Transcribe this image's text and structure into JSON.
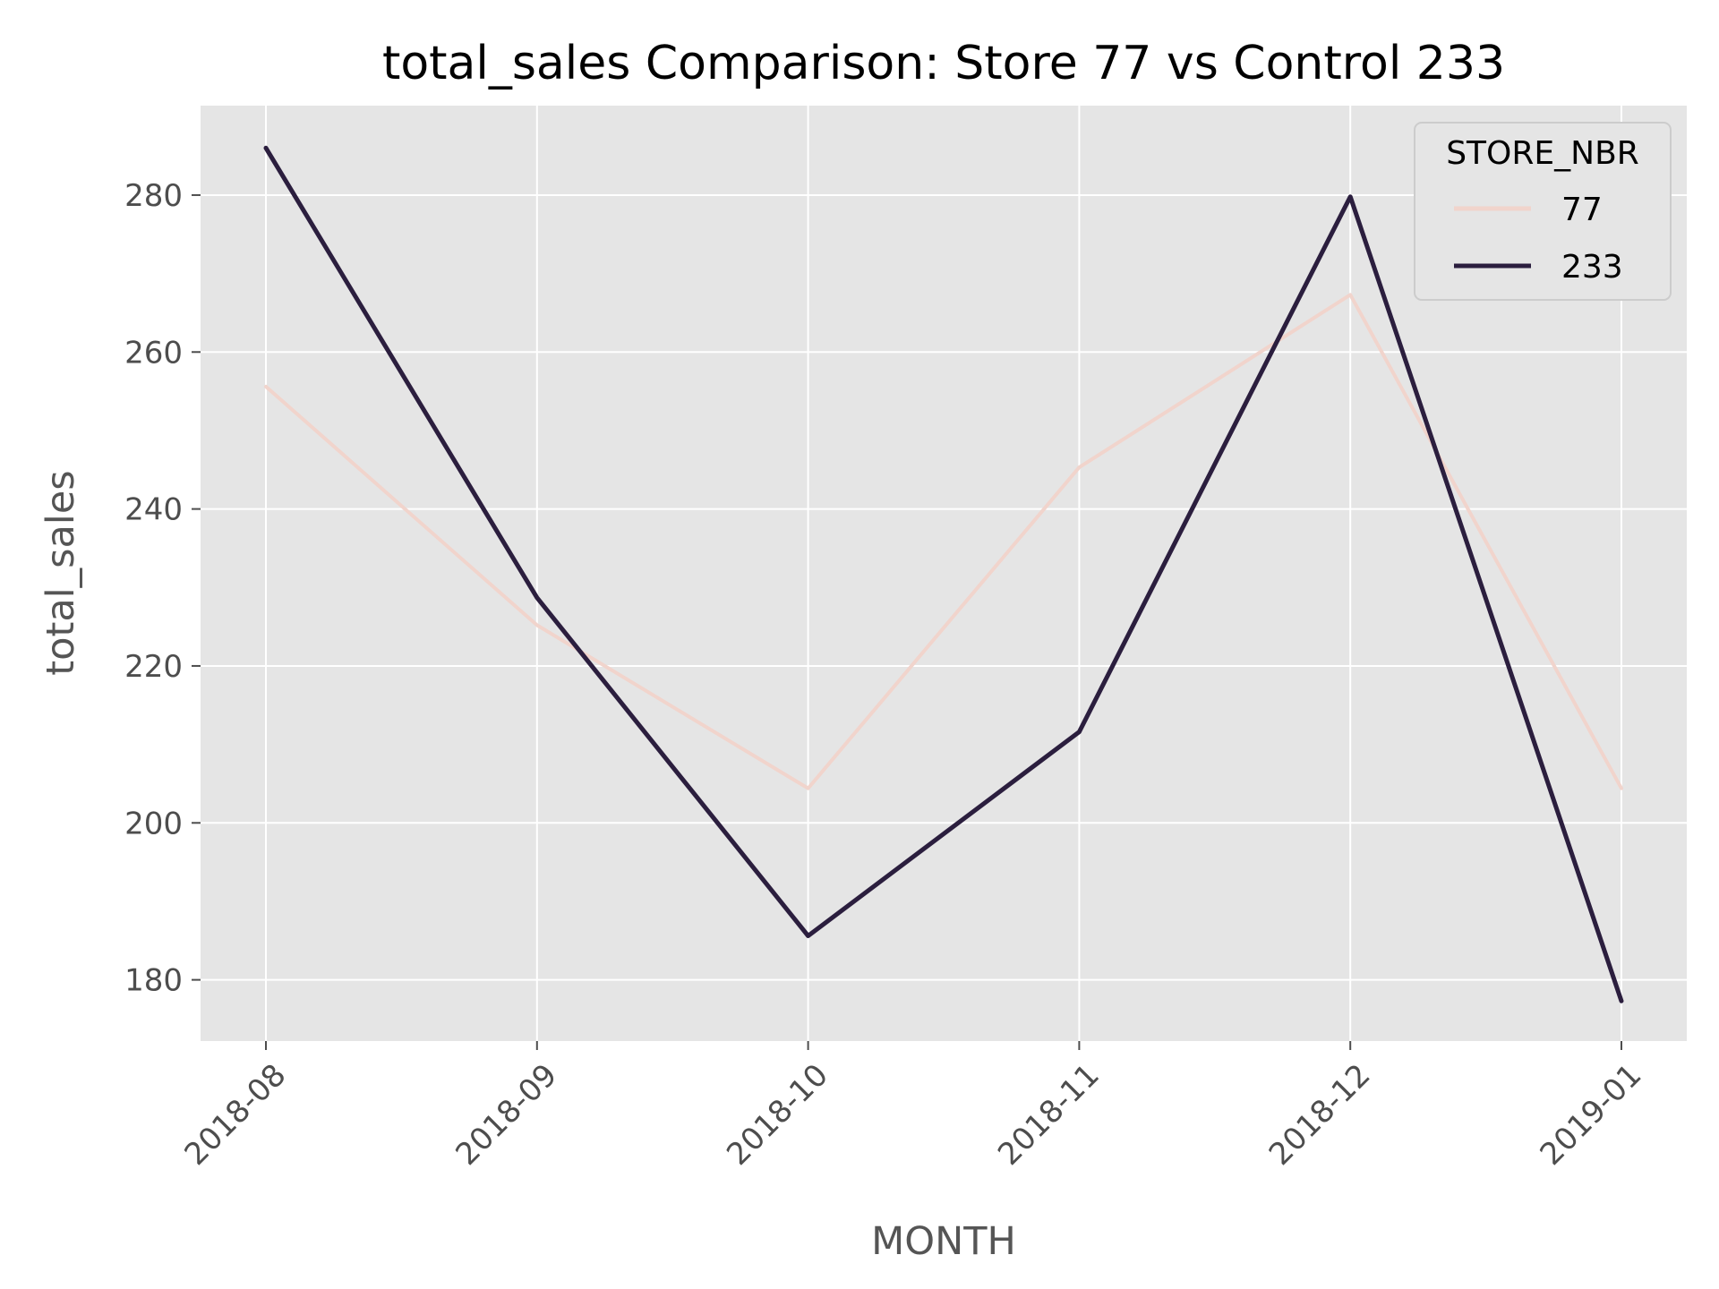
{
  "chart_data": {
    "type": "line",
    "title": "total_sales Comparison: Store 77 vs Control 233",
    "xlabel": "MONTH",
    "ylabel": "total_sales",
    "categories": [
      "2018-08",
      "2018-09",
      "2018-10",
      "2018-11",
      "2018-12",
      "2019-01"
    ],
    "ylim": [
      172.2,
      291.4
    ],
    "yticks": [
      180,
      200,
      220,
      240,
      260,
      280
    ],
    "grid": true,
    "legend": {
      "title": "STORE_NBR",
      "position": "top-right"
    },
    "series": [
      {
        "name": "77",
        "color": "#f1d4cc",
        "values": [
          255.6,
          225.2,
          204.4,
          245.3,
          267.3,
          204.4
        ]
      },
      {
        "name": "233",
        "color": "#2b1e3e",
        "values": [
          286.0,
          228.7,
          185.6,
          211.6,
          279.8,
          177.3
        ]
      }
    ],
    "style": {
      "plot_background": "#e5e5e5",
      "grid_color": "#ffffff"
    }
  }
}
